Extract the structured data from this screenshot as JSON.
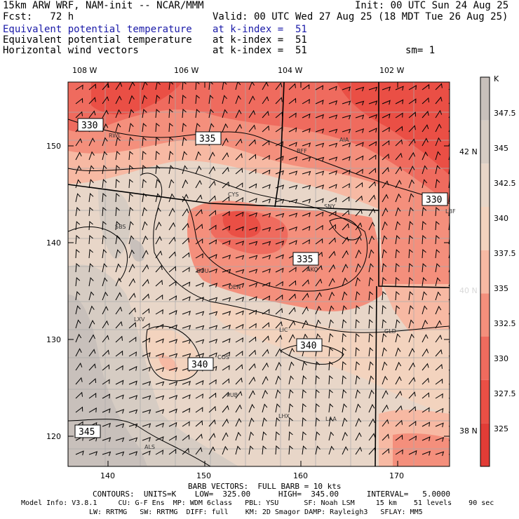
{
  "header": {
    "model": "15km ARW WRF, NAM-init -- NCAR/MMM",
    "init": "Init: 00 UTC Sun 24 Aug 25",
    "fcst": "Fcst:   72 h",
    "valid": "Valid: 00 UTC Wed 27 Aug 25 (18 MDT Tue 26 Aug 25)",
    "field1": "Equivalent potential temperature",
    "field1_level": "at k-index =  51",
    "field2": "Equivalent potential temperature",
    "field2_level": "at k-index =  51",
    "field3": "Horizontal wind vectors",
    "field3_level": "at k-index =  51",
    "smooth": "sm= 1"
  },
  "map": {
    "lon_labels": [
      "108 W",
      "106 W",
      "104 W",
      "102 W"
    ],
    "lat_labels": [
      "42 N",
      "40 N",
      "38 N"
    ],
    "x_ticks": [
      "140",
      "150",
      "160",
      "170"
    ],
    "y_ticks": [
      "150",
      "140",
      "130",
      "120"
    ],
    "cities": [
      "RWL",
      "BFF",
      "AIA",
      "CYS",
      "SNY",
      "SBS",
      "LBF",
      "AKO",
      "BOU",
      "DEN",
      "LXV",
      "LIC",
      "GLD",
      "COS",
      "PUB",
      "LHX",
      "LAA",
      "ALS"
    ],
    "contour_labels": [
      "330",
      "335",
      "330",
      "335",
      "340",
      "340",
      "345"
    ]
  },
  "colorbar": {
    "unit": "K",
    "labels": [
      "347.5",
      "345",
      "342.5",
      "340",
      "337.5",
      "335",
      "332.5",
      "330",
      "327.5",
      "325"
    ],
    "colors": [
      "#c8c0bb",
      "#d6ccc3",
      "#e8d6c8",
      "#f3d3be",
      "#f7b9a3",
      "#f48f7c",
      "#ef6b5e",
      "#ea4f45",
      "#e23c36"
    ]
  },
  "footer": {
    "barbs": "BARB VECTORS:  FULL BARB = 10 kts",
    "contours": "CONTOURS:  UNITS=K    LOW=  325.00      HIGH=  345.00      INTERVAL=   5.0000",
    "model_info1": "Model Info: V3.8.1     CU: G-F Ens  MP: WDM 6class   PBL: YSU      SF: Noah LSM     15 km    51 levels    90 sec",
    "model_info2": "LW: RRTMG   SW: RRTMG  DIFF: full    KM: 2D Smagor DAMP: Rayleigh3   SFLAY: MM5"
  }
}
